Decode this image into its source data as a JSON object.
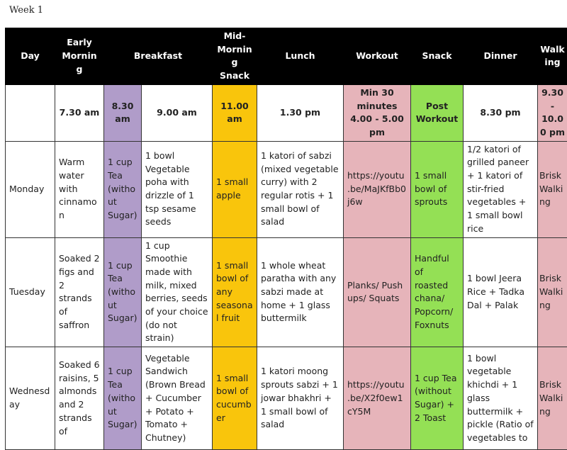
{
  "title": "Week 1",
  "colors": {
    "header": "#000000",
    "tea": "#b09cc9",
    "mid_morning": "#f9c50c",
    "workout": "#e6b4ba",
    "snack": "#94e055"
  },
  "headers": [
    "Day",
    "Early Morning",
    "Breakfast",
    "Mid-Morning Snack",
    "Lunch",
    "Workout",
    "Snack",
    "Dinner",
    "Walking"
  ],
  "times": [
    "",
    "7.30 am",
    "8.30 am",
    "9.00 am",
    "11.00 am",
    "1.30 pm",
    "Min 30 minutes 4.00 - 5.00 pm",
    "Post Workout",
    "8.30 pm",
    "9.30 - 10.00 pm"
  ],
  "rows": [
    {
      "day": "Monday",
      "early": "Warm water with cinnamon",
      "tea": "1 cup Tea (without Sugar)",
      "breakfast": "1 bowl Vegetable poha with drizzle of 1 tsp sesame seeds",
      "mid": "1 small apple",
      "lunch": "1 katori of sabzi (mixed vegetable curry) with 2 regular rotis + 1 small bowl of salad",
      "workout": "https://youtu.be/MaJKfBb0j6w",
      "snack": "1 small bowl of sprouts",
      "dinner": "1/2 katori of grilled paneer + 1 katori of stir-fried vegetables + 1 small bowl rice",
      "walk": "Brisk Walking"
    },
    {
      "day": "Tuesday",
      "early": "Soaked 2 figs and 2 strands of saffron",
      "tea": "1 cup Tea (without Sugar)",
      "breakfast": "1 cup Smoothie made with milk, mixed berries, seeds of your choice (do not strain)",
      "mid": "1 small bowl of any seasonal fruit",
      "lunch": "1 whole wheat paratha with any sabzi made at home + 1 glass buttermilk",
      "workout": "Planks/ Push ups/ Squats",
      "snack": "Handful of roasted chana/ Popcorn/ Foxnuts",
      "dinner": "1 bowl Jeera Rice + Tadka Dal + Palak",
      "walk": "Brisk Walking"
    },
    {
      "day": "Wednesday",
      "early": "Soaked 6 raisins, 5 almonds and 2 strands of",
      "tea": "1 cup Tea (without Sugar)",
      "breakfast": "Vegetable Sandwich (Brown Bread + Cucumber + Potato + Tomato + Chutney)",
      "mid": "1 small bowl of cucumber",
      "lunch": "1 katori moong sprouts sabzi + 1 jowar bhakhri + 1 small bowl of salad",
      "workout": "https://youtu.be/X2f0ew1cY5M",
      "snack": "1 cup Tea (without Sugar) + 2 Toast",
      "dinner": "1 bowl vegetable khichdi + 1 glass buttermilk + pickle (Ratio of vegetables to",
      "walk": "Brisk Walking"
    }
  ]
}
